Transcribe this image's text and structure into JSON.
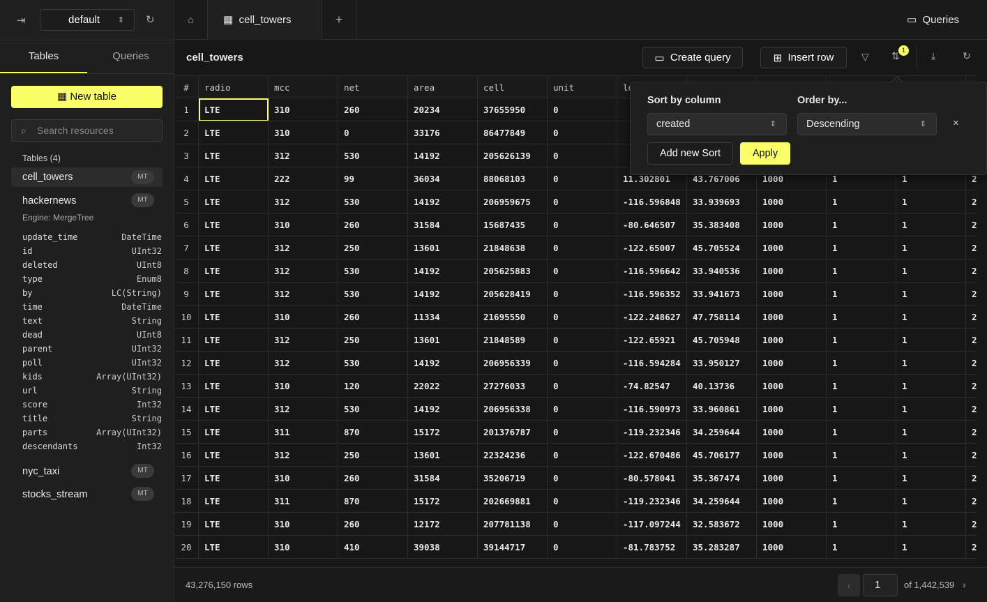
{
  "topbar": {
    "database": "default",
    "tab": "cell_towers",
    "queries": "Queries"
  },
  "sidebar": {
    "tabs": [
      "Tables",
      "Queries"
    ],
    "new_table": "New table",
    "search": "Search resources",
    "heading": "Tables (4)",
    "tables": [
      {
        "name": "cell_towers",
        "badge": "MT"
      },
      {
        "name": "hackernews",
        "badge": "MT",
        "engine": "Engine: MergeTree",
        "columns": [
          [
            "update_time",
            "DateTime"
          ],
          [
            "id",
            "UInt32"
          ],
          [
            "deleted",
            "UInt8"
          ],
          [
            "type",
            "Enum8"
          ],
          [
            "by",
            "LC(String)"
          ],
          [
            "time",
            "DateTime"
          ],
          [
            "text",
            "String"
          ],
          [
            "dead",
            "UInt8"
          ],
          [
            "parent",
            "UInt32"
          ],
          [
            "poll",
            "UInt32"
          ],
          [
            "kids",
            "Array(UInt32)"
          ],
          [
            "url",
            "String"
          ],
          [
            "score",
            "Int32"
          ],
          [
            "title",
            "String"
          ],
          [
            "parts",
            "Array(UInt32)"
          ],
          [
            "descendants",
            "Int32"
          ]
        ]
      },
      {
        "name": "nyc_taxi",
        "badge": "MT"
      },
      {
        "name": "stocks_stream",
        "badge": "MT"
      }
    ]
  },
  "main": {
    "title": "cell_towers",
    "create_query": "Create query",
    "insert_row": "Insert row",
    "sort_count": "1"
  },
  "table": {
    "headers": [
      "#",
      "radio",
      "mcc",
      "net",
      "area",
      "cell",
      "unit",
      "lon"
    ],
    "rows": [
      [
        "1",
        "LTE",
        "310",
        "260",
        "20234",
        "37655950",
        "0"
      ],
      [
        "2",
        "LTE",
        "310",
        "0",
        "33176",
        "86477849",
        "0"
      ],
      [
        "3",
        "LTE",
        "312",
        "530",
        "14192",
        "205626139",
        "0"
      ],
      [
        "4",
        "LTE",
        "222",
        "99",
        "36034",
        "88068103",
        "0",
        "11.302801",
        "43.767006",
        "1000",
        "1",
        "1",
        "2"
      ],
      [
        "5",
        "LTE",
        "312",
        "530",
        "14192",
        "206959675",
        "0",
        "-116.596848",
        "33.939693",
        "1000",
        "1",
        "1",
        "2"
      ],
      [
        "6",
        "LTE",
        "310",
        "260",
        "31584",
        "15687435",
        "0",
        "-80.646507",
        "35.383408",
        "1000",
        "1",
        "1",
        "2"
      ],
      [
        "7",
        "LTE",
        "312",
        "250",
        "13601",
        "21848638",
        "0",
        "-122.65007",
        "45.705524",
        "1000",
        "1",
        "1",
        "2"
      ],
      [
        "8",
        "LTE",
        "312",
        "530",
        "14192",
        "205625883",
        "0",
        "-116.596642",
        "33.940536",
        "1000",
        "1",
        "1",
        "2"
      ],
      [
        "9",
        "LTE",
        "312",
        "530",
        "14192",
        "205628419",
        "0",
        "-116.596352",
        "33.941673",
        "1000",
        "1",
        "1",
        "2"
      ],
      [
        "10",
        "LTE",
        "310",
        "260",
        "11334",
        "21695550",
        "0",
        "-122.248627",
        "47.758114",
        "1000",
        "1",
        "1",
        "2"
      ],
      [
        "11",
        "LTE",
        "312",
        "250",
        "13601",
        "21848589",
        "0",
        "-122.65921",
        "45.705948",
        "1000",
        "1",
        "1",
        "2"
      ],
      [
        "12",
        "LTE",
        "312",
        "530",
        "14192",
        "206956339",
        "0",
        "-116.594284",
        "33.950127",
        "1000",
        "1",
        "1",
        "2"
      ],
      [
        "13",
        "LTE",
        "310",
        "120",
        "22022",
        "27276033",
        "0",
        "-74.82547",
        "40.13736",
        "1000",
        "1",
        "1",
        "2"
      ],
      [
        "14",
        "LTE",
        "312",
        "530",
        "14192",
        "206956338",
        "0",
        "-116.590973",
        "33.960861",
        "1000",
        "1",
        "1",
        "2"
      ],
      [
        "15",
        "LTE",
        "311",
        "870",
        "15172",
        "201376787",
        "0",
        "-119.232346",
        "34.259644",
        "1000",
        "1",
        "1",
        "2"
      ],
      [
        "16",
        "LTE",
        "312",
        "250",
        "13601",
        "22324236",
        "0",
        "-122.670486",
        "45.706177",
        "1000",
        "1",
        "1",
        "2"
      ],
      [
        "17",
        "LTE",
        "310",
        "260",
        "31584",
        "35206719",
        "0",
        "-80.578041",
        "35.367474",
        "1000",
        "1",
        "1",
        "2"
      ],
      [
        "18",
        "LTE",
        "311",
        "870",
        "15172",
        "202669881",
        "0",
        "-119.232346",
        "34.259644",
        "1000",
        "1",
        "1",
        "2"
      ],
      [
        "19",
        "LTE",
        "310",
        "260",
        "12172",
        "207781138",
        "0",
        "-117.097244",
        "32.583672",
        "1000",
        "1",
        "1",
        "2"
      ],
      [
        "20",
        "LTE",
        "310",
        "410",
        "39038",
        "39144717",
        "0",
        "-81.783752",
        "35.283287",
        "1000",
        "1",
        "1",
        "2"
      ]
    ]
  },
  "footer": {
    "rows": "43,276,150 rows",
    "page": "1",
    "of": "of 1,442,539"
  },
  "sort_popup": {
    "column_label": "Sort by column",
    "column": "created",
    "order_label": "Order by...",
    "order": "Descending",
    "close": "×",
    "add": "Add new Sort",
    "apply": "Apply"
  }
}
